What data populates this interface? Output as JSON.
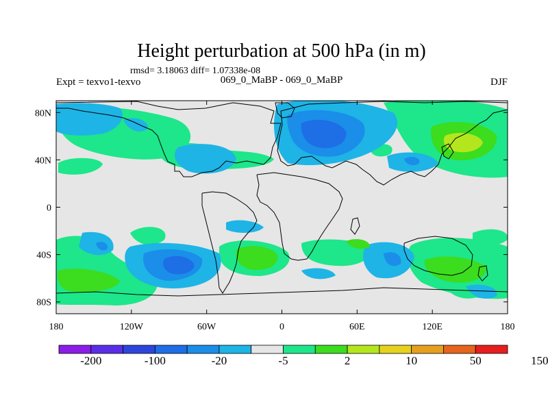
{
  "chart_data": {
    "type": "contour-map",
    "title": "Height perturbation at 500 hPa (in m)",
    "stats_label": "rmsd= 3.18063 diff= 1.07338e-08",
    "left_label": "Expt = texvo1-texvo",
    "center_label": "069_0_MaBP - 069_0_MaBP",
    "right_label": "DJF",
    "x_ticks": [
      "180",
      "120W",
      "60W",
      "0",
      "60E",
      "120E",
      "180"
    ],
    "x_tick_values": [
      -180,
      -120,
      -60,
      0,
      60,
      120,
      180
    ],
    "y_ticks": [
      "80N",
      "40N",
      "0",
      "40S",
      "80S"
    ],
    "y_tick_values": [
      80,
      40,
      0,
      -40,
      -80
    ],
    "xlim": [
      -180,
      180
    ],
    "ylim": [
      -90,
      90
    ],
    "colorbar": {
      "colors": [
        "#8a1ee6",
        "#5a2ee6",
        "#2c46dc",
        "#1e6ee6",
        "#1a8ee8",
        "#1eb4e6",
        "#e6e6e6",
        "#1ee68a",
        "#3cdc1e",
        "#b4e61e",
        "#e6d21e",
        "#e6a01e",
        "#e6641e",
        "#e61e1e"
      ],
      "labels": [
        "-200",
        "-100",
        "-20",
        "-5",
        "2",
        "10",
        "50",
        "150"
      ],
      "label_positions": [
        1,
        3,
        5,
        7,
        9,
        11,
        13,
        15
      ]
    },
    "anomaly_centers": [
      {
        "lon": 30,
        "lat": 55,
        "level": -20,
        "note": "negative center over Europe/W Russia"
      },
      {
        "lon": -75,
        "lat": -52,
        "level": -20,
        "note": "negative center S Pacific"
      },
      {
        "lon": 148,
        "lat": 48,
        "level": 10,
        "note": "positive center NW Pacific"
      },
      {
        "lon": -20,
        "lat": -45,
        "level": 10,
        "note": "positive center S Atlantic"
      },
      {
        "lon": 145,
        "lat": -52,
        "level": 10,
        "note": "positive center S of Australia"
      },
      {
        "lon": 100,
        "lat": -45,
        "level": -5,
        "note": "negative center S Indian Ocean"
      }
    ]
  }
}
